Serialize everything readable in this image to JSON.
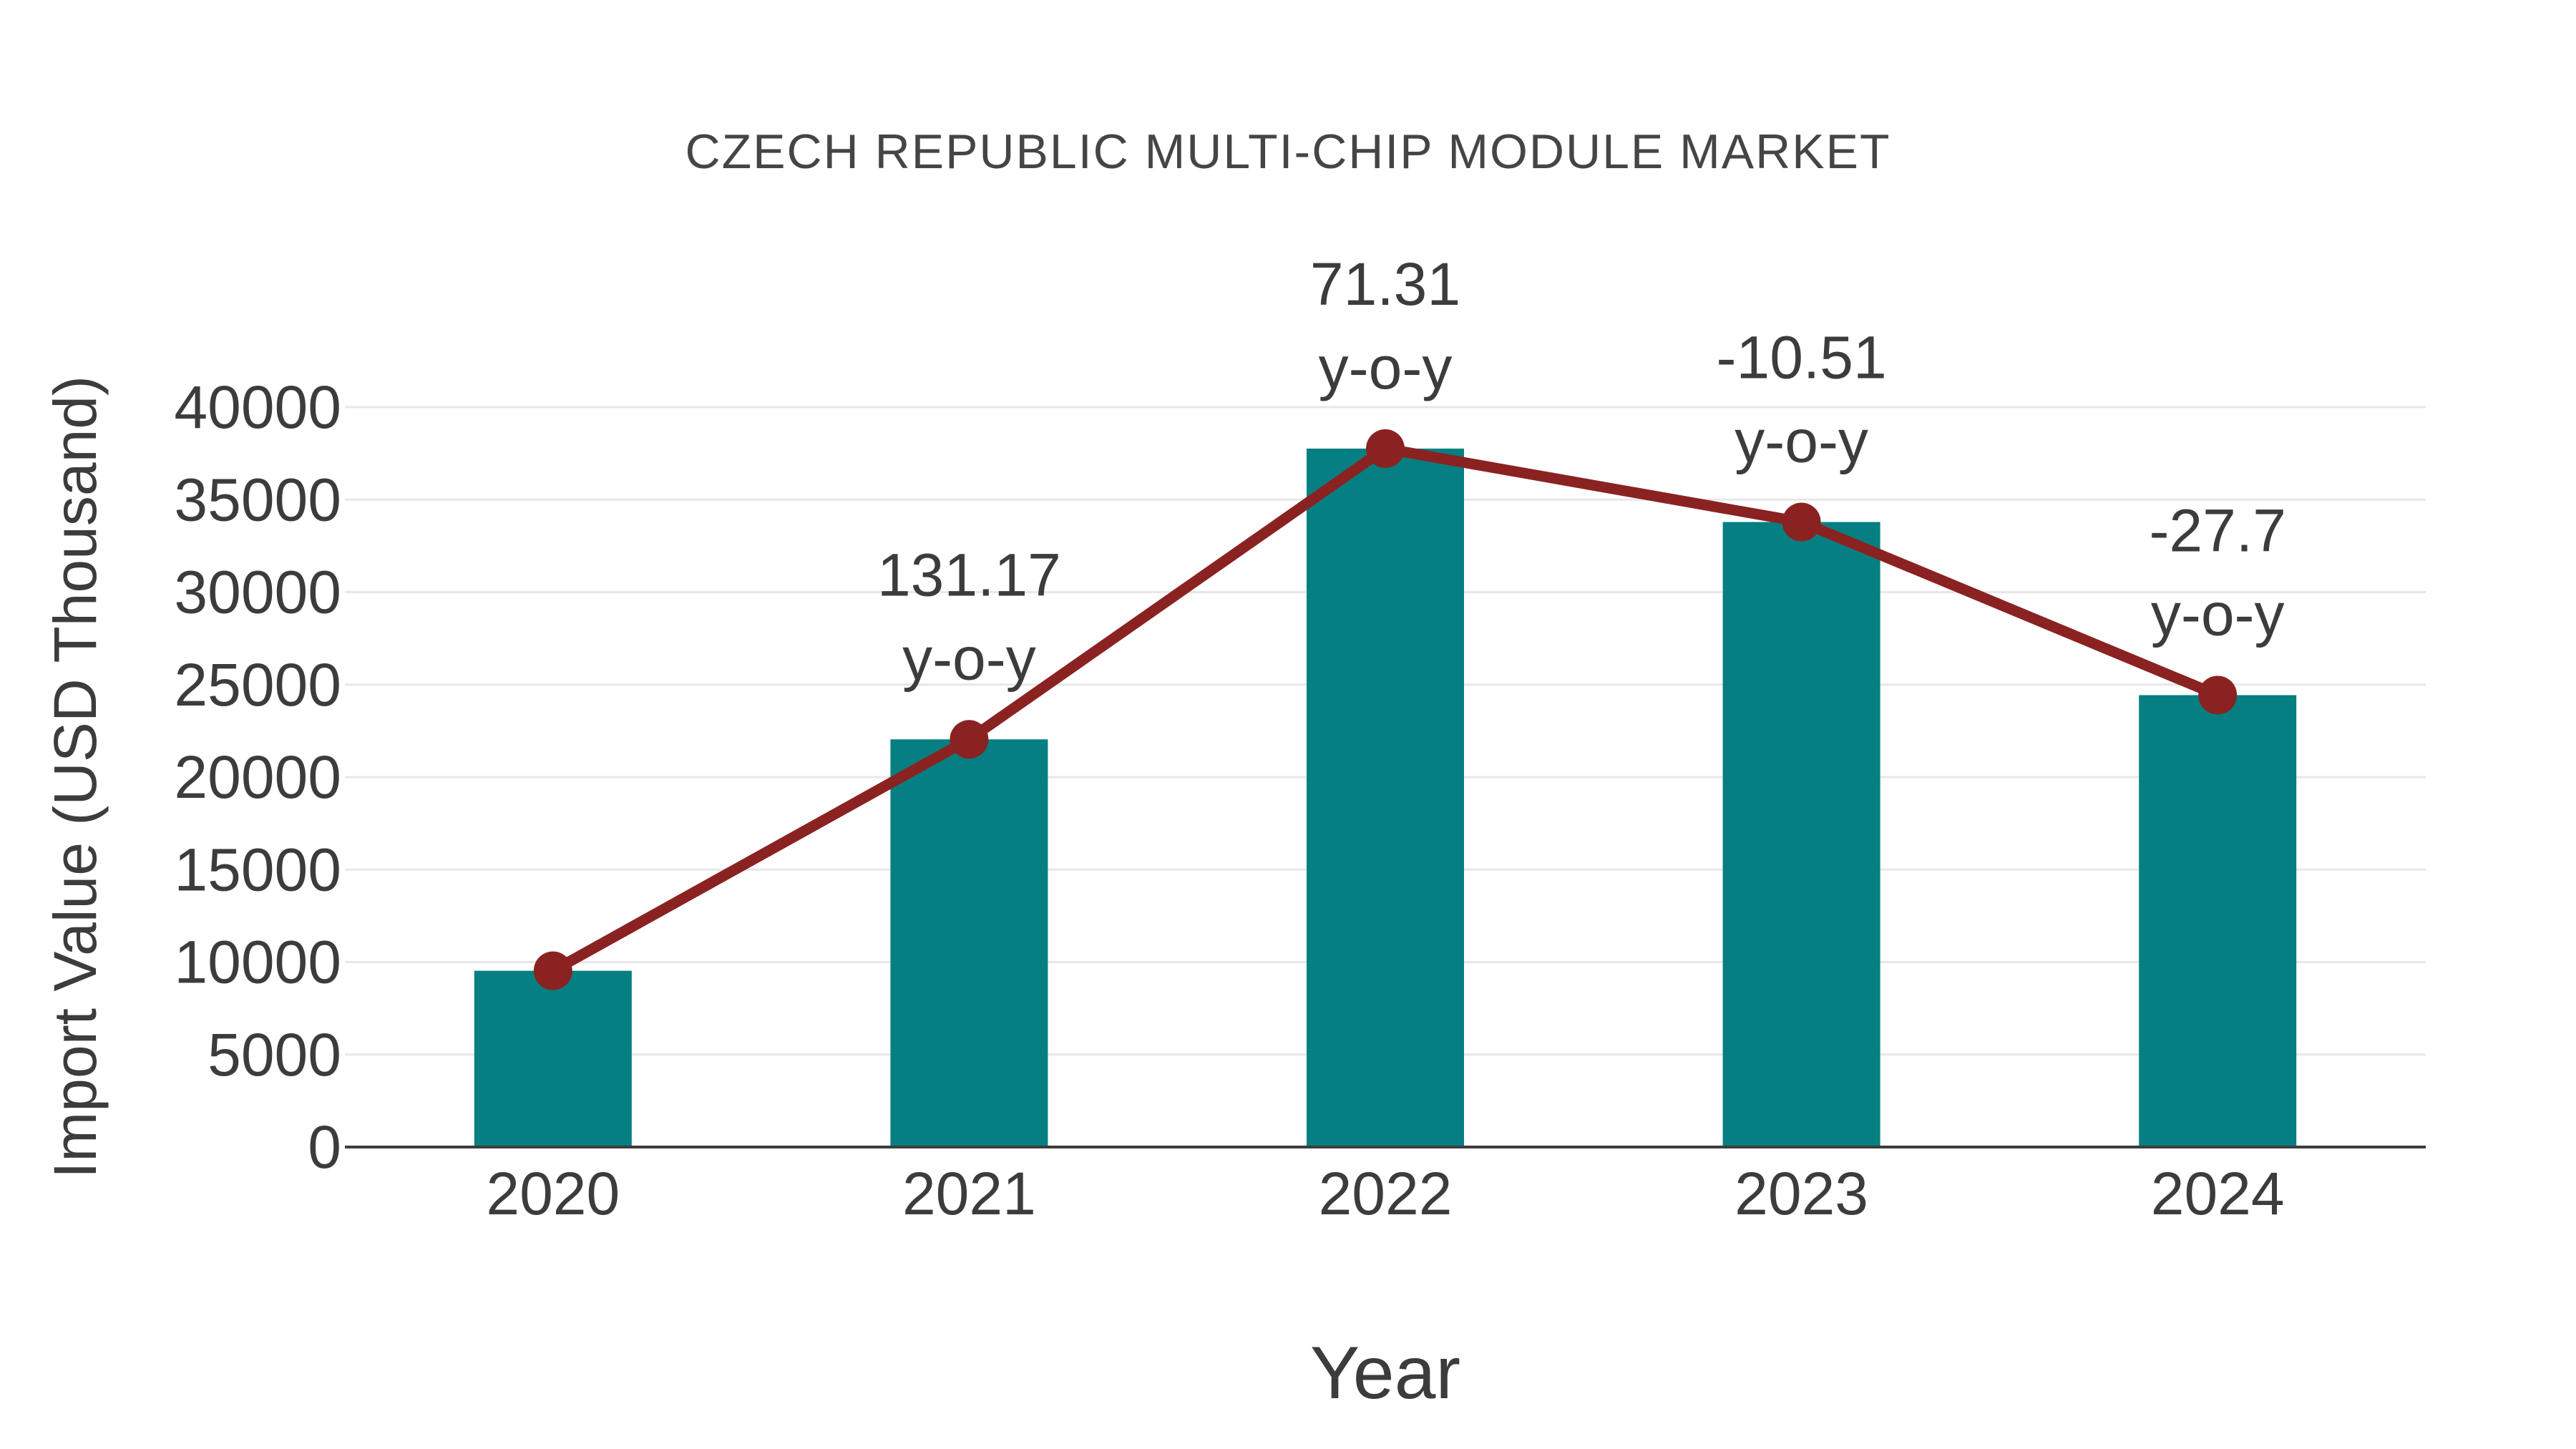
{
  "chart_data": {
    "type": "bar+line",
    "title": "CZECH REPUBLIC MULTI-CHIP MODULE MARKET",
    "xlabel": "Year",
    "ylabel": "Import Value (USD Thousand)",
    "categories": [
      "2020",
      "2021",
      "2022",
      "2023",
      "2024"
    ],
    "ylim": [
      0,
      40000
    ],
    "y_ticks": [
      0,
      5000,
      10000,
      15000,
      20000,
      25000,
      30000,
      35000,
      40000
    ],
    "grid": true,
    "legend_position": "none",
    "series": [
      {
        "name": "Import Value (USD Thousand)",
        "type": "bar",
        "color": "#057F82",
        "values": [
          9530,
          22040,
          37760,
          33790,
          24430
        ]
      },
      {
        "name": "y-o-y growth",
        "type": "line",
        "color": "#8B2222",
        "values": [
          9530,
          22040,
          37760,
          33790,
          24430
        ],
        "point_labels": [
          "",
          "131.17",
          "71.31",
          "-10.51",
          "-27.7"
        ],
        "point_label_suffix": "y-o-y"
      }
    ],
    "colors": {
      "bar": "#057F82",
      "line": "#8B2222",
      "grid": "#E7E7E7",
      "axis": "#3C3C3C",
      "text": "#3C3C3C",
      "title": "#454545",
      "background": "#FFFFFF"
    }
  }
}
